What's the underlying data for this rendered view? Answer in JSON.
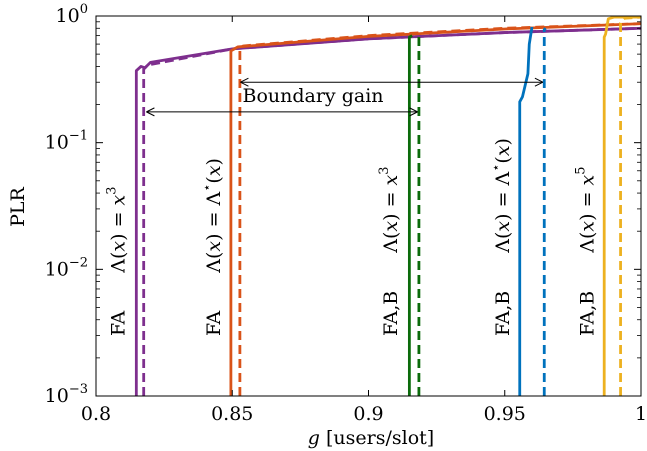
{
  "chart_data": {
    "type": "line",
    "title": "",
    "xlabel": "g [users/slot]",
    "ylabel": "PLR",
    "xlim": [
      0.8,
      1.0
    ],
    "ylim": [
      0.001,
      1
    ],
    "yscale": "log",
    "grid": false,
    "x_ticks": [
      0.8,
      0.85,
      0.9,
      0.95,
      1.0
    ],
    "x_tick_labels": [
      "0.8",
      "0.85",
      "0.9",
      "0.95",
      "1"
    ],
    "y_ticks": [
      0.001,
      0.01,
      0.1,
      1
    ],
    "y_tick_labels": [
      {
        "base": "10",
        "exp": "−3"
      },
      {
        "base": "10",
        "exp": "−2"
      },
      {
        "base": "10",
        "exp": "−1"
      },
      {
        "base": "10",
        "exp": "0"
      }
    ],
    "colors": {
      "purple": "#7e2f8e",
      "orange": "#d95319",
      "green": "#0b6b0b",
      "blue": "#0072bd",
      "yellow": "#edb120"
    },
    "series": [
      {
        "color": "purple",
        "dash": false,
        "x": [
          0.8148,
          0.8148,
          0.8165,
          0.818,
          0.82,
          0.85,
          0.9,
          0.95,
          1.0
        ],
        "y": [
          0.001,
          0.37,
          0.4,
          0.39,
          0.43,
          0.55,
          0.66,
          0.74,
          0.8
        ]
      },
      {
        "color": "purple",
        "dash": true,
        "x": [
          0.8175,
          0.8175,
          0.819,
          0.85,
          0.9,
          0.95,
          1.0
        ],
        "y": [
          0.001,
          0.38,
          0.41,
          0.55,
          0.66,
          0.74,
          0.8
        ]
      },
      {
        "color": "orange",
        "dash": false,
        "x": [
          0.8495,
          0.8495,
          0.852,
          0.9,
          0.95,
          1.0
        ],
        "y": [
          0.001,
          0.53,
          0.57,
          0.69,
          0.79,
          0.87
        ]
      },
      {
        "color": "orange",
        "dash": true,
        "x": [
          0.8528,
          0.8528,
          0.854,
          0.9,
          0.95,
          1.0
        ],
        "y": [
          0.001,
          0.54,
          0.58,
          0.7,
          0.8,
          0.87
        ]
      },
      {
        "color": "green",
        "dash": false,
        "x": [
          0.915,
          0.915,
          0.916
        ],
        "y": [
          0.001,
          0.68,
          0.7
        ]
      },
      {
        "color": "green",
        "dash": true,
        "x": [
          0.9185,
          0.9185,
          0.9195
        ],
        "y": [
          0.001,
          0.69,
          0.71
        ]
      },
      {
        "color": "blue",
        "dash": false,
        "x": [
          0.9555,
          0.9555,
          0.9565,
          0.9585,
          0.959,
          0.96
        ],
        "y": [
          0.001,
          0.21,
          0.23,
          0.35,
          0.6,
          0.82
        ]
      },
      {
        "color": "blue",
        "dash": true,
        "x": [
          0.9645,
          0.9645,
          0.965
        ],
        "y": [
          0.001,
          0.78,
          0.8
        ]
      },
      {
        "color": "yellow",
        "dash": false,
        "x": [
          0.9865,
          0.9865,
          0.987,
          0.988,
          0.99,
          1.0
        ],
        "y": [
          0.001,
          0.68,
          0.72,
          0.95,
          0.98,
          0.98
        ]
      },
      {
        "color": "yellow",
        "dash": true,
        "x": [
          0.9925,
          0.9925,
          0.994,
          1.0
        ],
        "y": [
          0.001,
          0.88,
          0.96,
          0.98
        ]
      }
    ],
    "curve_labels": [
      {
        "scheme": "FA",
        "pre": "Λ(",
        "var": "x",
        "mid": ") = ",
        "rhs": "x",
        "sup": "3",
        "x": 0.8105
      },
      {
        "scheme": "FA",
        "pre": "Λ(",
        "var": "x",
        "mid": ") = ",
        "rhs": "Λ",
        "sup": "⋆",
        "tail": "(x)",
        "x": 0.8455
      },
      {
        "scheme": "FA,B",
        "pre": "Λ(",
        "var": "x",
        "mid": ") = ",
        "rhs": "x",
        "sup": "3",
        "x": 0.9105
      },
      {
        "scheme": "FA,B",
        "pre": "Λ(",
        "var": "x",
        "mid": ") = ",
        "rhs": "Λ",
        "sup": "⋆",
        "tail": "(x)",
        "x": 0.9515
      },
      {
        "scheme": "FA,B",
        "pre": "Λ(",
        "var": "x",
        "mid": ") = ",
        "rhs": "x",
        "sup": "5",
        "x": 0.9825
      }
    ],
    "annotations": [
      {
        "text": "Boundary gain",
        "arrow1": {
          "x1": 0.8185,
          "x2": 0.918,
          "y": 0.175
        },
        "arrow2": {
          "x1": 0.853,
          "x2": 0.964,
          "y": 0.3
        }
      }
    ]
  }
}
